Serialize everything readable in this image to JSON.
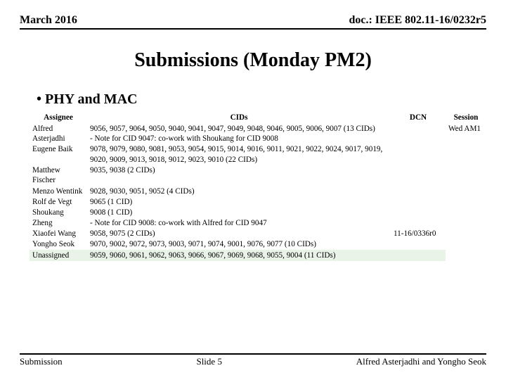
{
  "header": {
    "date": "March 2016",
    "docnum": "doc.: IEEE 802.11-16/0232r5"
  },
  "title": "Submissions (Monday PM2)",
  "bullet": "PHY and MAC",
  "table": {
    "columns": {
      "assignee": "Assignee",
      "cids": "CIDs",
      "dcn": "DCN",
      "session": "Session"
    },
    "rows": [
      {
        "assignee": "Alfred Asterjadhi",
        "cids": "9056, 9057, 9064, 9050, 9040, 9041, 9047, 9049, 9048, 9046, 9005, 9006, 9007 (13 CIDs)\n- Note for CID 9047: co-work with Shoukang for CID 9008",
        "dcn": "",
        "session": ""
      },
      {
        "assignee": "Eugene Baik",
        "cids": "9078, 9079, 9080, 9081, 9053, 9054, 9015, 9014, 9016, 9011, 9021, 9022, 9024, 9017, 9019, 9020, 9009, 9013, 9018, 9012, 9023, 9010 (22 CIDs)",
        "dcn": "",
        "session": ""
      },
      {
        "assignee": "Matthew Fischer",
        "cids": "9035, 9038 (2 CIDs)",
        "dcn": "",
        "session": ""
      },
      {
        "assignee": "Menzo Wentink",
        "cids": "9028, 9030, 9051, 9052 (4 CIDs)",
        "dcn": "",
        "session": ""
      },
      {
        "assignee": "Rolf de Vegt",
        "cids": "9065 (1 CID)",
        "dcn": "",
        "session": ""
      },
      {
        "assignee": "Shoukang Zheng",
        "cids": "9008 (1 CID)\n- Note for CID 9008: co-work with Alfred for CID 9047",
        "dcn": "",
        "session": ""
      },
      {
        "assignee": "Xiaofei Wang",
        "cids": "9058, 9075 (2 CIDs)",
        "dcn": "11-16/0336r0",
        "session": ""
      },
      {
        "assignee": "Yongho Seok",
        "cids": "9070, 9002, 9072, 9073, 9003, 9071, 9074, 9001, 9076, 9077 (10 CIDs)",
        "dcn": "",
        "session": ""
      },
      {
        "assignee": "Unassigned",
        "cids": "9059, 9060, 9061, 9062, 9063, 9066, 9067, 9069, 9068, 9055, 9004 (11 CIDs)",
        "dcn": "",
        "session": "",
        "unassigned": true
      }
    ],
    "session_label": "Wed AM1"
  },
  "footer": {
    "left": "Submission",
    "center": "Slide 5",
    "right": "Alfred Asterjadhi and Yongho Seok"
  },
  "colors": {
    "unassigned_bg": "#e9f3e8",
    "text": "#000000",
    "background": "#ffffff"
  }
}
